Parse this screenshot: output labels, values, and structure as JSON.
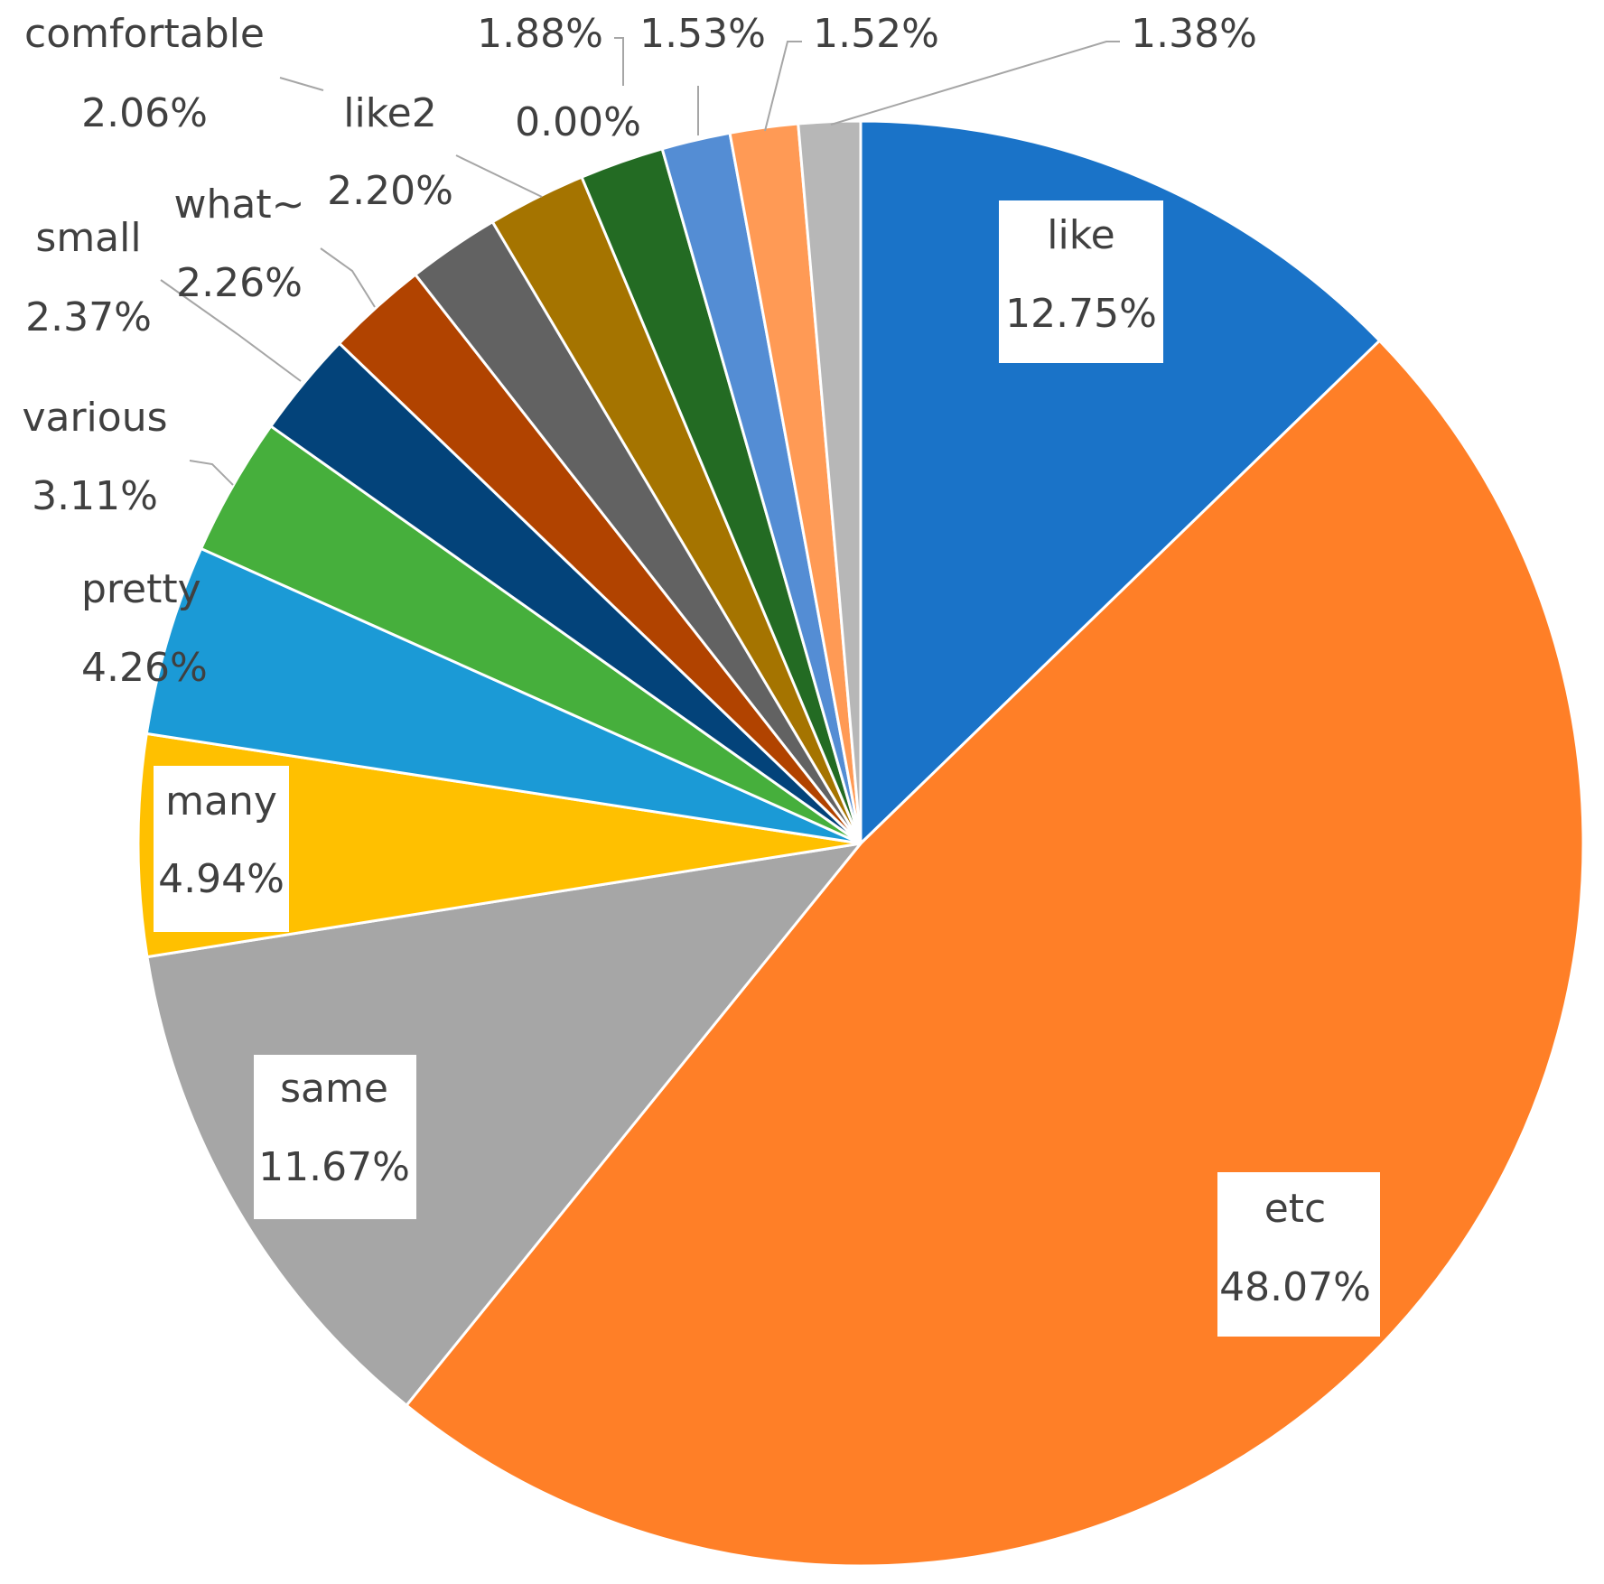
{
  "chart_data": {
    "type": "pie",
    "title": "",
    "start_angle_deg": 0,
    "direction": "clockwise",
    "slices": [
      {
        "name": "like",
        "label": "12.75%",
        "value": 12.75,
        "color": "#1a73c8"
      },
      {
        "name": "etc",
        "label": "48.07%",
        "value": 48.07,
        "color": "#ff7f27"
      },
      {
        "name": "same",
        "label": "11.67%",
        "value": 11.67,
        "color": "#a6a6a6"
      },
      {
        "name": "many",
        "label": "4.94%",
        "value": 4.94,
        "color": "#ffc000"
      },
      {
        "name": "pretty",
        "label": "4.26%",
        "value": 4.26,
        "color": "#1b9ad6"
      },
      {
        "name": "various",
        "label": "3.11%",
        "value": 3.11,
        "color": "#46af3c"
      },
      {
        "name": "small",
        "label": "2.37%",
        "value": 2.37,
        "color": "#03437a"
      },
      {
        "name": "what~",
        "label": "2.26%",
        "value": 2.26,
        "color": "#b14300"
      },
      {
        "name": "comfortable",
        "label": "2.06%",
        "value": 2.06,
        "color": "#626262"
      },
      {
        "name": "like2",
        "label": "2.20%",
        "value": 2.2,
        "color": "#a57400"
      },
      {
        "name": "",
        "label": "1.88%",
        "value": 1.88,
        "color": "#236b23"
      },
      {
        "name": "",
        "label": "0.00%",
        "value": 0.0,
        "color": "#236b23"
      },
      {
        "name": "",
        "label": "1.53%",
        "value": 1.53,
        "color": "#548dd4"
      },
      {
        "name": "",
        "label": "1.52%",
        "value": 1.52,
        "color": "#ff9a55"
      },
      {
        "name": "",
        "label": "1.38%",
        "value": 1.38,
        "color": "#b7b7b7"
      }
    ]
  }
}
